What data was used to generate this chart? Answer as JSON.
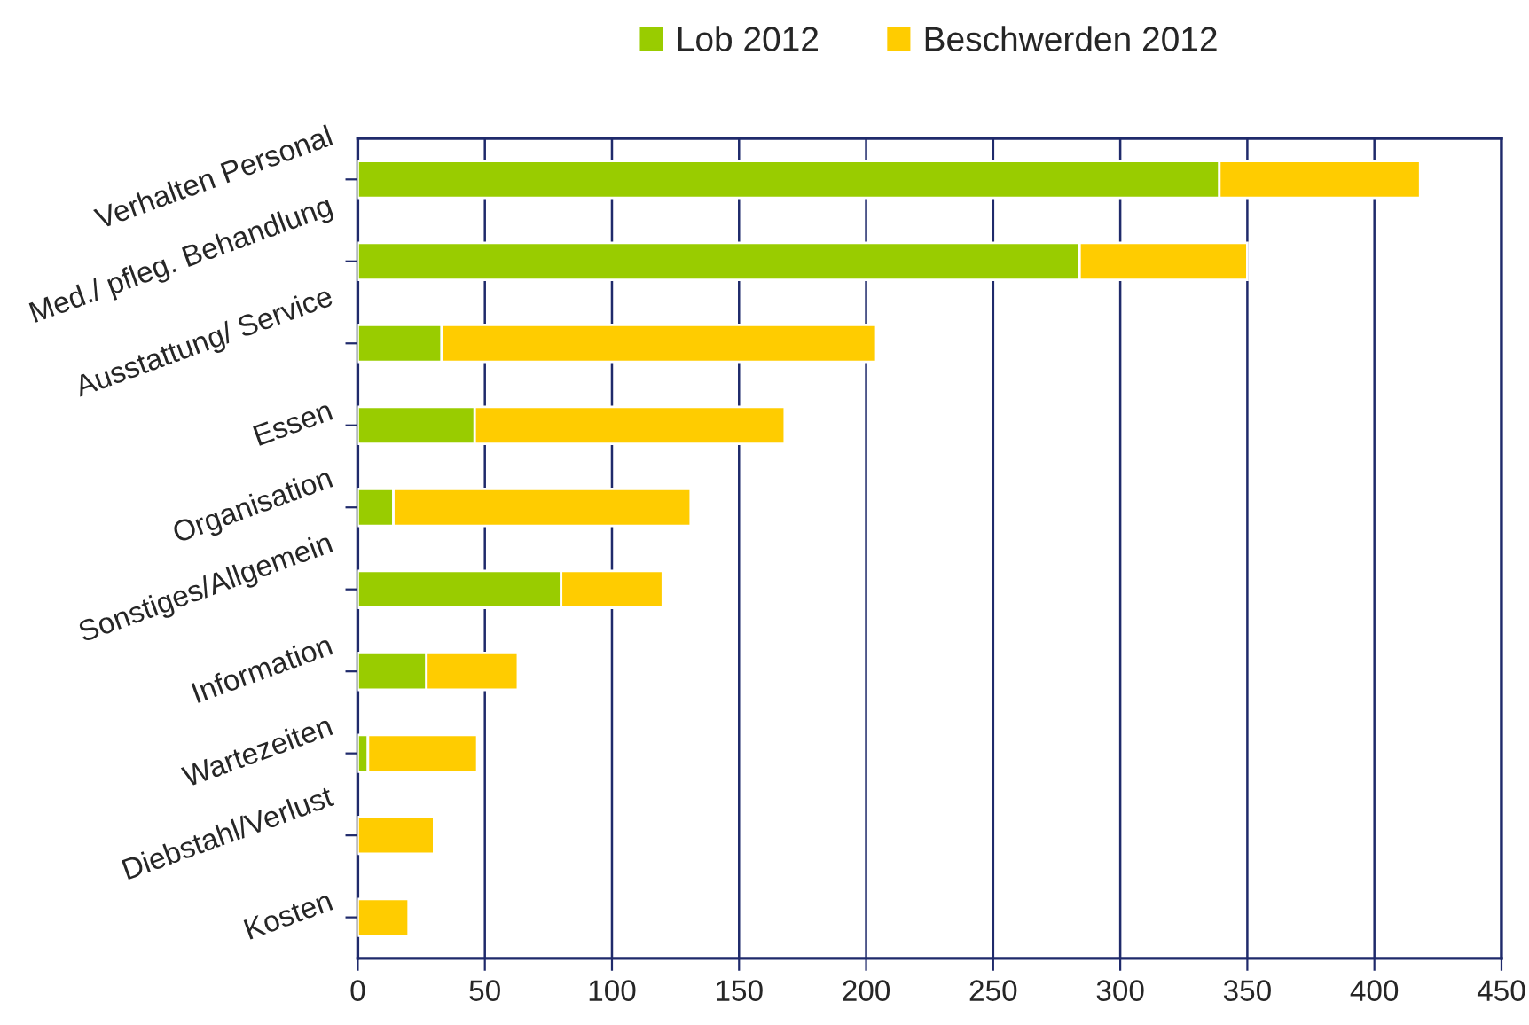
{
  "chart_data": {
    "type": "bar",
    "orientation": "horizontal",
    "stacked": true,
    "categories": [
      "Verhalten Personal",
      "Med./ pfleg. Behandlung",
      "Ausstattung/ Service",
      "Essen",
      "Organisation",
      "Sonstiges/Allgemein",
      "Information",
      "Wartezeiten",
      "Diebstahl/Verlust",
      "Kosten"
    ],
    "series": [
      {
        "name": "Lob 2012",
        "color": "#99cc00",
        "values": [
          339,
          284,
          33,
          46,
          14,
          80,
          27,
          4,
          0,
          0
        ]
      },
      {
        "name": "Beschwerden 2012",
        "color": "#ffcc00",
        "values": [
          79,
          66,
          171,
          122,
          117,
          40,
          36,
          43,
          30,
          20
        ]
      }
    ],
    "xlim": [
      0,
      450
    ],
    "xticks": [
      0,
      50,
      100,
      150,
      200,
      250,
      300,
      350,
      400,
      450
    ],
    "grid": "x",
    "legend": "top"
  }
}
